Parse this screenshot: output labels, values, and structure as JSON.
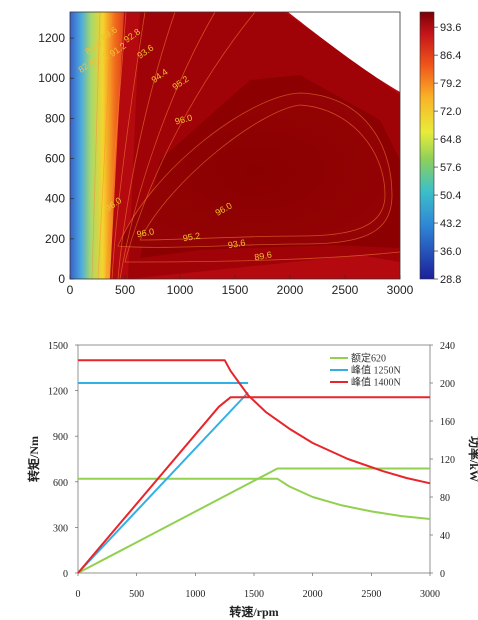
{
  "chart_data": [
    {
      "type": "heatmap",
      "title": "",
      "xlabel": "",
      "ylabel": "",
      "xlim": [
        0,
        3000
      ],
      "ylim": [
        0,
        1330
      ],
      "x_ticks": [
        "0",
        "500",
        "1000",
        "1500",
        "2000",
        "2500",
        "3000"
      ],
      "y_ticks": [
        "0",
        "200",
        "400",
        "600",
        "800",
        "1000",
        "1200"
      ],
      "colorbar_ticks": [
        "93.6",
        "86.4",
        "79.2",
        "72.0",
        "64.8",
        "57.6",
        "50.4",
        "43.2",
        "36.0",
        "28.8"
      ],
      "colorbar_range": [
        28.8,
        97.5
      ],
      "contour_labels": [
        {
          "text": "82.4",
          "x": 165,
          "y": 1050
        },
        {
          "text": "84.0",
          "x": 230,
          "y": 1140
        },
        {
          "text": "87.2",
          "x": 290,
          "y": 1080
        },
        {
          "text": "89.6",
          "x": 370,
          "y": 1210
        },
        {
          "text": "91.2",
          "x": 450,
          "y": 1130
        },
        {
          "text": "92.8",
          "x": 580,
          "y": 1200
        },
        {
          "text": "93.6",
          "x": 700,
          "y": 1120
        },
        {
          "text": "94.4",
          "x": 830,
          "y": 1000
        },
        {
          "text": "95.2",
          "x": 1020,
          "y": 965
        },
        {
          "text": "96.0",
          "x": 1040,
          "y": 780
        },
        {
          "text": "96.0",
          "x": 410,
          "y": 360
        },
        {
          "text": "96.0",
          "x": 690,
          "y": 215
        },
        {
          "text": "95.2",
          "x": 1110,
          "y": 195
        },
        {
          "text": "96.0",
          "x": 1410,
          "y": 335
        },
        {
          "text": "93.6",
          "x": 1520,
          "y": 160
        },
        {
          "text": "89.6",
          "x": 1760,
          "y": 100
        }
      ]
    },
    {
      "type": "line",
      "title": "",
      "xlabel": "转速/rpm",
      "ylabel": "转矩/Nm",
      "ylabel2": "功率/kW",
      "xlim": [
        0,
        3000
      ],
      "ylim": [
        0,
        1500
      ],
      "ylim2": [
        0,
        240
      ],
      "x_ticks": [
        "0",
        "500",
        "1000",
        "1500",
        "2000",
        "2500",
        "3000"
      ],
      "y_ticks": [
        "0",
        "300",
        "600",
        "900",
        "1200",
        "1500"
      ],
      "y2_ticks": [
        "0",
        "40",
        "80",
        "120",
        "160",
        "200",
        "240"
      ],
      "legend_position": "top-right",
      "series": [
        {
          "name": "额定620",
          "color": "#92d050",
          "torque": [
            [
              0,
              620
            ],
            [
              1700,
              620
            ],
            [
              1800,
              570
            ],
            [
              2000,
              500
            ],
            [
              2250,
              445
            ],
            [
              2500,
              405
            ],
            [
              2750,
              375
            ],
            [
              3000,
              355
            ]
          ],
          "power": [
            [
              0,
              0
            ],
            [
              1700,
              110
            ],
            [
              3000,
              110
            ]
          ]
        },
        {
          "name": "峰值 1250N",
          "color": "#31b0e6",
          "torque": [
            [
              0,
              1250
            ],
            [
              1450,
              1250
            ]
          ],
          "power": [
            [
              0,
              0
            ],
            [
              1450,
              190
            ]
          ]
        },
        {
          "name": "峰值 1400N",
          "color": "#e8252a",
          "torque": [
            [
              0,
              1400
            ],
            [
              1250,
              1400
            ],
            [
              1300,
              1330
            ],
            [
              1450,
              1170
            ],
            [
              1600,
              1060
            ],
            [
              1800,
              950
            ],
            [
              2000,
              855
            ],
            [
              2300,
              750
            ],
            [
              2600,
              670
            ],
            [
              2800,
              625
            ],
            [
              3000,
              590
            ]
          ],
          "power": [
            [
              0,
              0
            ],
            [
              1200,
              175
            ],
            [
              1300,
              185
            ],
            [
              3000,
              185
            ]
          ]
        }
      ]
    }
  ]
}
